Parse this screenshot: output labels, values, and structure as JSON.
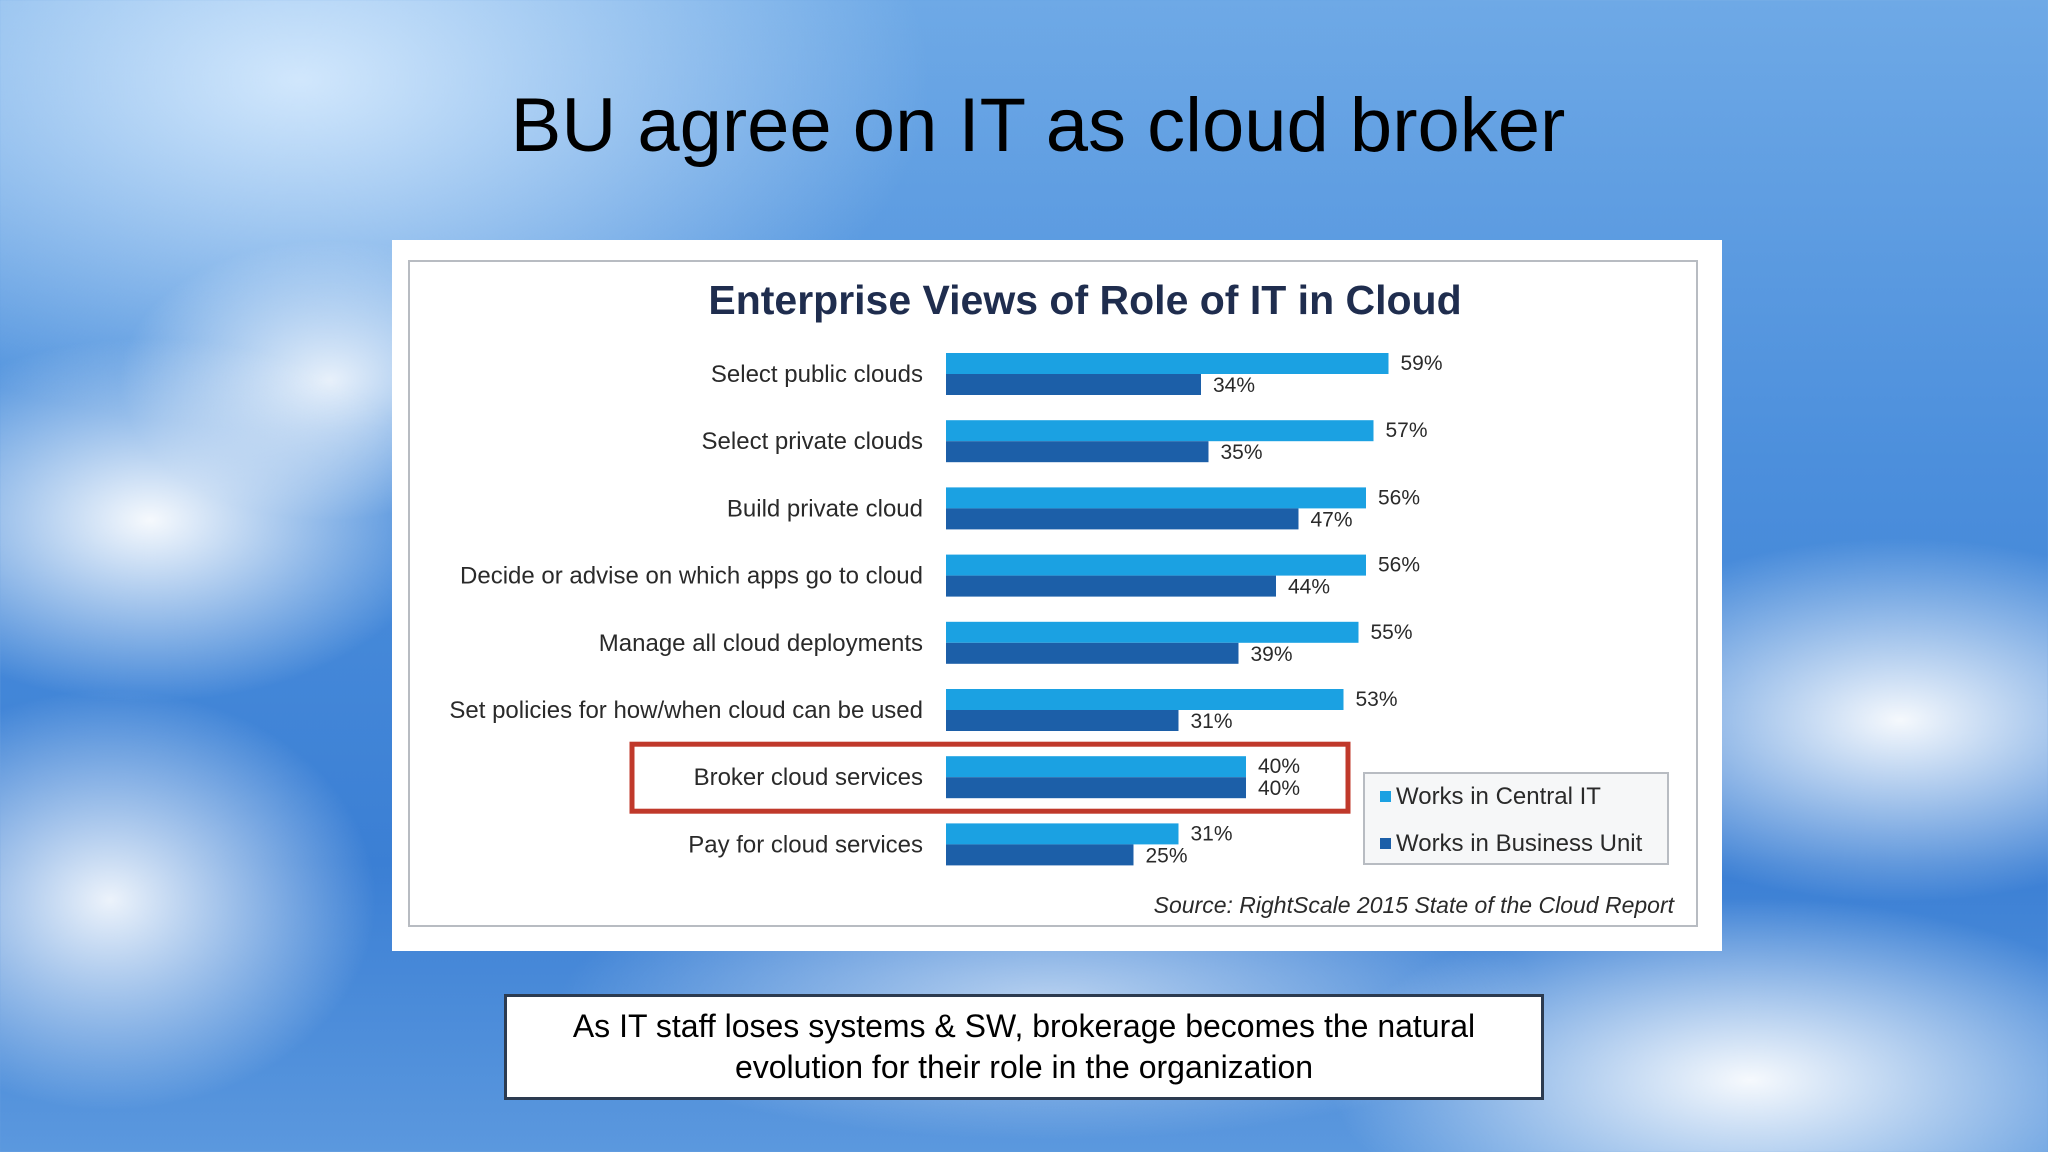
{
  "slide": {
    "title": "BU agree on IT as cloud broker",
    "caption": "As IT staff loses systems & SW, brokerage becomes the natural evolution for their role in the organization"
  },
  "colors": {
    "central_it": "#1ba1e2",
    "business_unit": "#1c5fa8",
    "highlight_box": "#c0392b"
  },
  "chart_data": {
    "type": "bar",
    "orientation": "horizontal",
    "title": "Enterprise Views of Role of IT in Cloud",
    "categories": [
      "Select public clouds",
      "Select private clouds",
      "Build private cloud",
      "Decide or advise on which apps go to cloud",
      "Manage all cloud deployments",
      "Set policies for how/when cloud can be used",
      "Broker cloud services",
      "Pay for cloud services"
    ],
    "series": [
      {
        "name": "Works in Central IT",
        "values": [
          59,
          57,
          56,
          56,
          55,
          53,
          40,
          31
        ],
        "labels": [
          "59%",
          "57%",
          "56%",
          "56%",
          "55%",
          "53%",
          "40%",
          "31%"
        ]
      },
      {
        "name": "Works in Business Unit",
        "values": [
          34,
          35,
          47,
          44,
          39,
          31,
          40,
          25
        ],
        "labels": [
          "34%",
          "35%",
          "47%",
          "44%",
          "39%",
          "31%",
          "40%",
          "25%"
        ]
      }
    ],
    "xlim": [
      0,
      100
    ],
    "unit": "%",
    "highlighted_category": "Broker cloud services",
    "legend_position": "bottom-right",
    "source": "Source: RightScale 2015 State of the Cloud Report",
    "grid": false
  }
}
